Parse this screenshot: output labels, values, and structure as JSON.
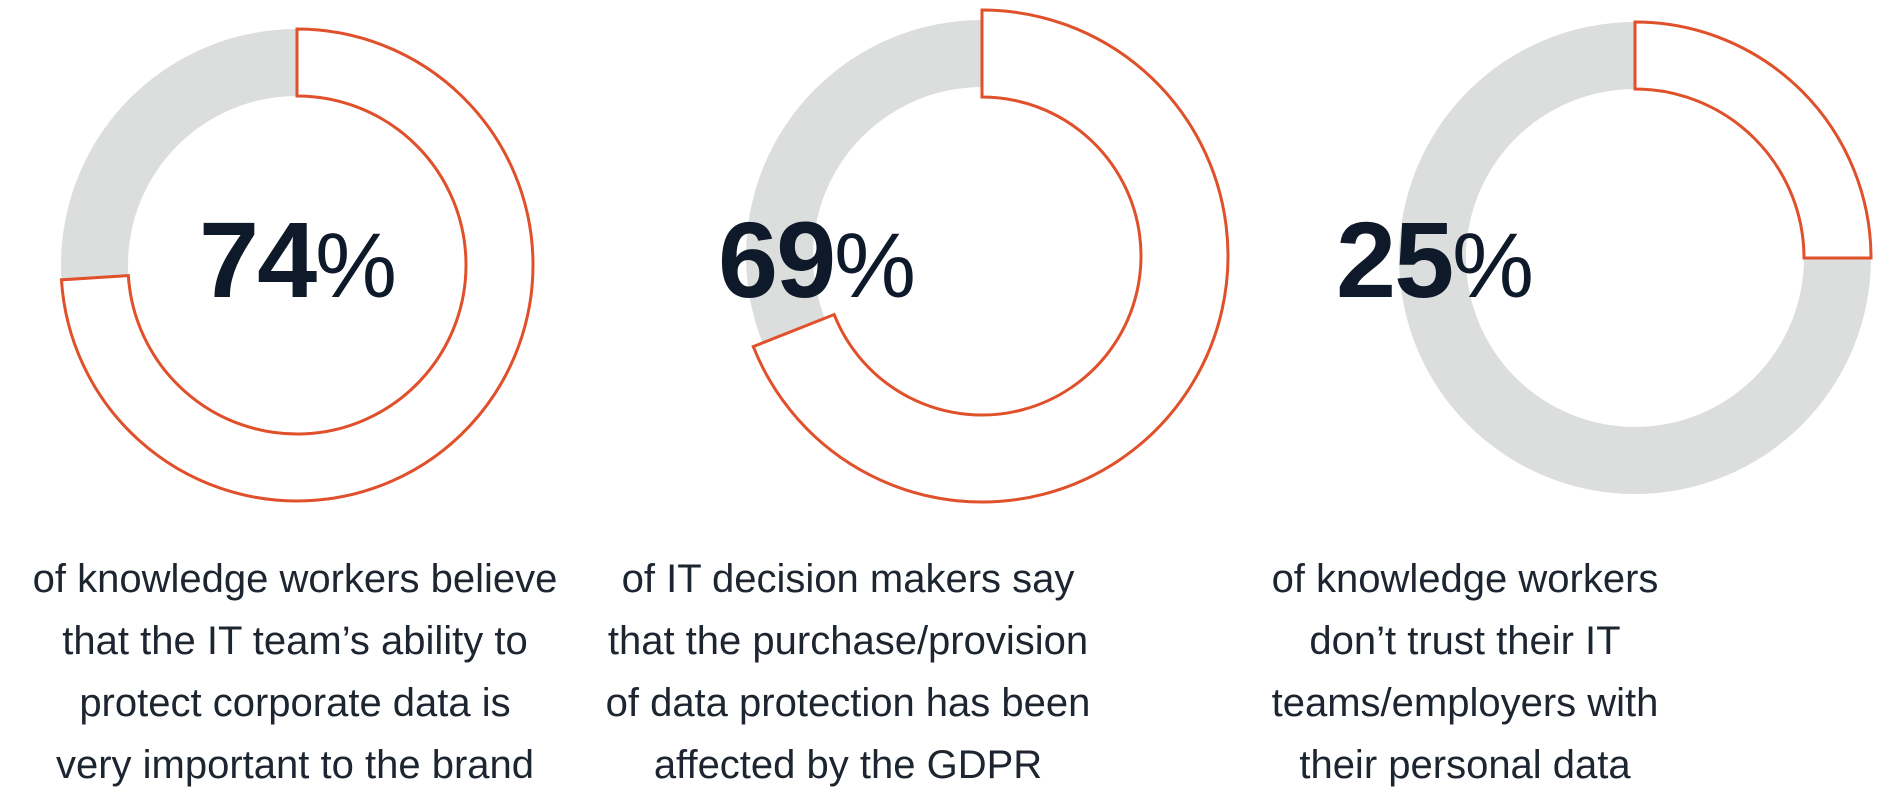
{
  "chart_data": [
    {
      "type": "pie",
      "style": "donut",
      "value": 74,
      "value_label": "74",
      "unit_label": "%",
      "caption_lines": [
        "of knowledge workers believe",
        "that the IT team’s ability to",
        "protect corporate data is",
        "very important to the brand"
      ]
    },
    {
      "type": "pie",
      "style": "donut",
      "value": 69,
      "value_label": "69",
      "unit_label": "%",
      "caption_lines": [
        "of IT decision makers say",
        "that the purchase/provision",
        "of data protection has been",
        "affected by the GDPR"
      ]
    },
    {
      "type": "pie",
      "style": "donut",
      "value": 25,
      "value_label": "25",
      "unit_label": "%",
      "caption_lines": [
        "of knowledge workers",
        "don’t trust their IT",
        "teams/employers with",
        "their personal data"
      ]
    }
  ],
  "colors": {
    "accent_outline": "#e0502a",
    "remainder_fill": "#dcdddd",
    "highlight_fill": "#ffffff",
    "number_text": "#0e1a2a",
    "caption_text": "#1d2530"
  }
}
